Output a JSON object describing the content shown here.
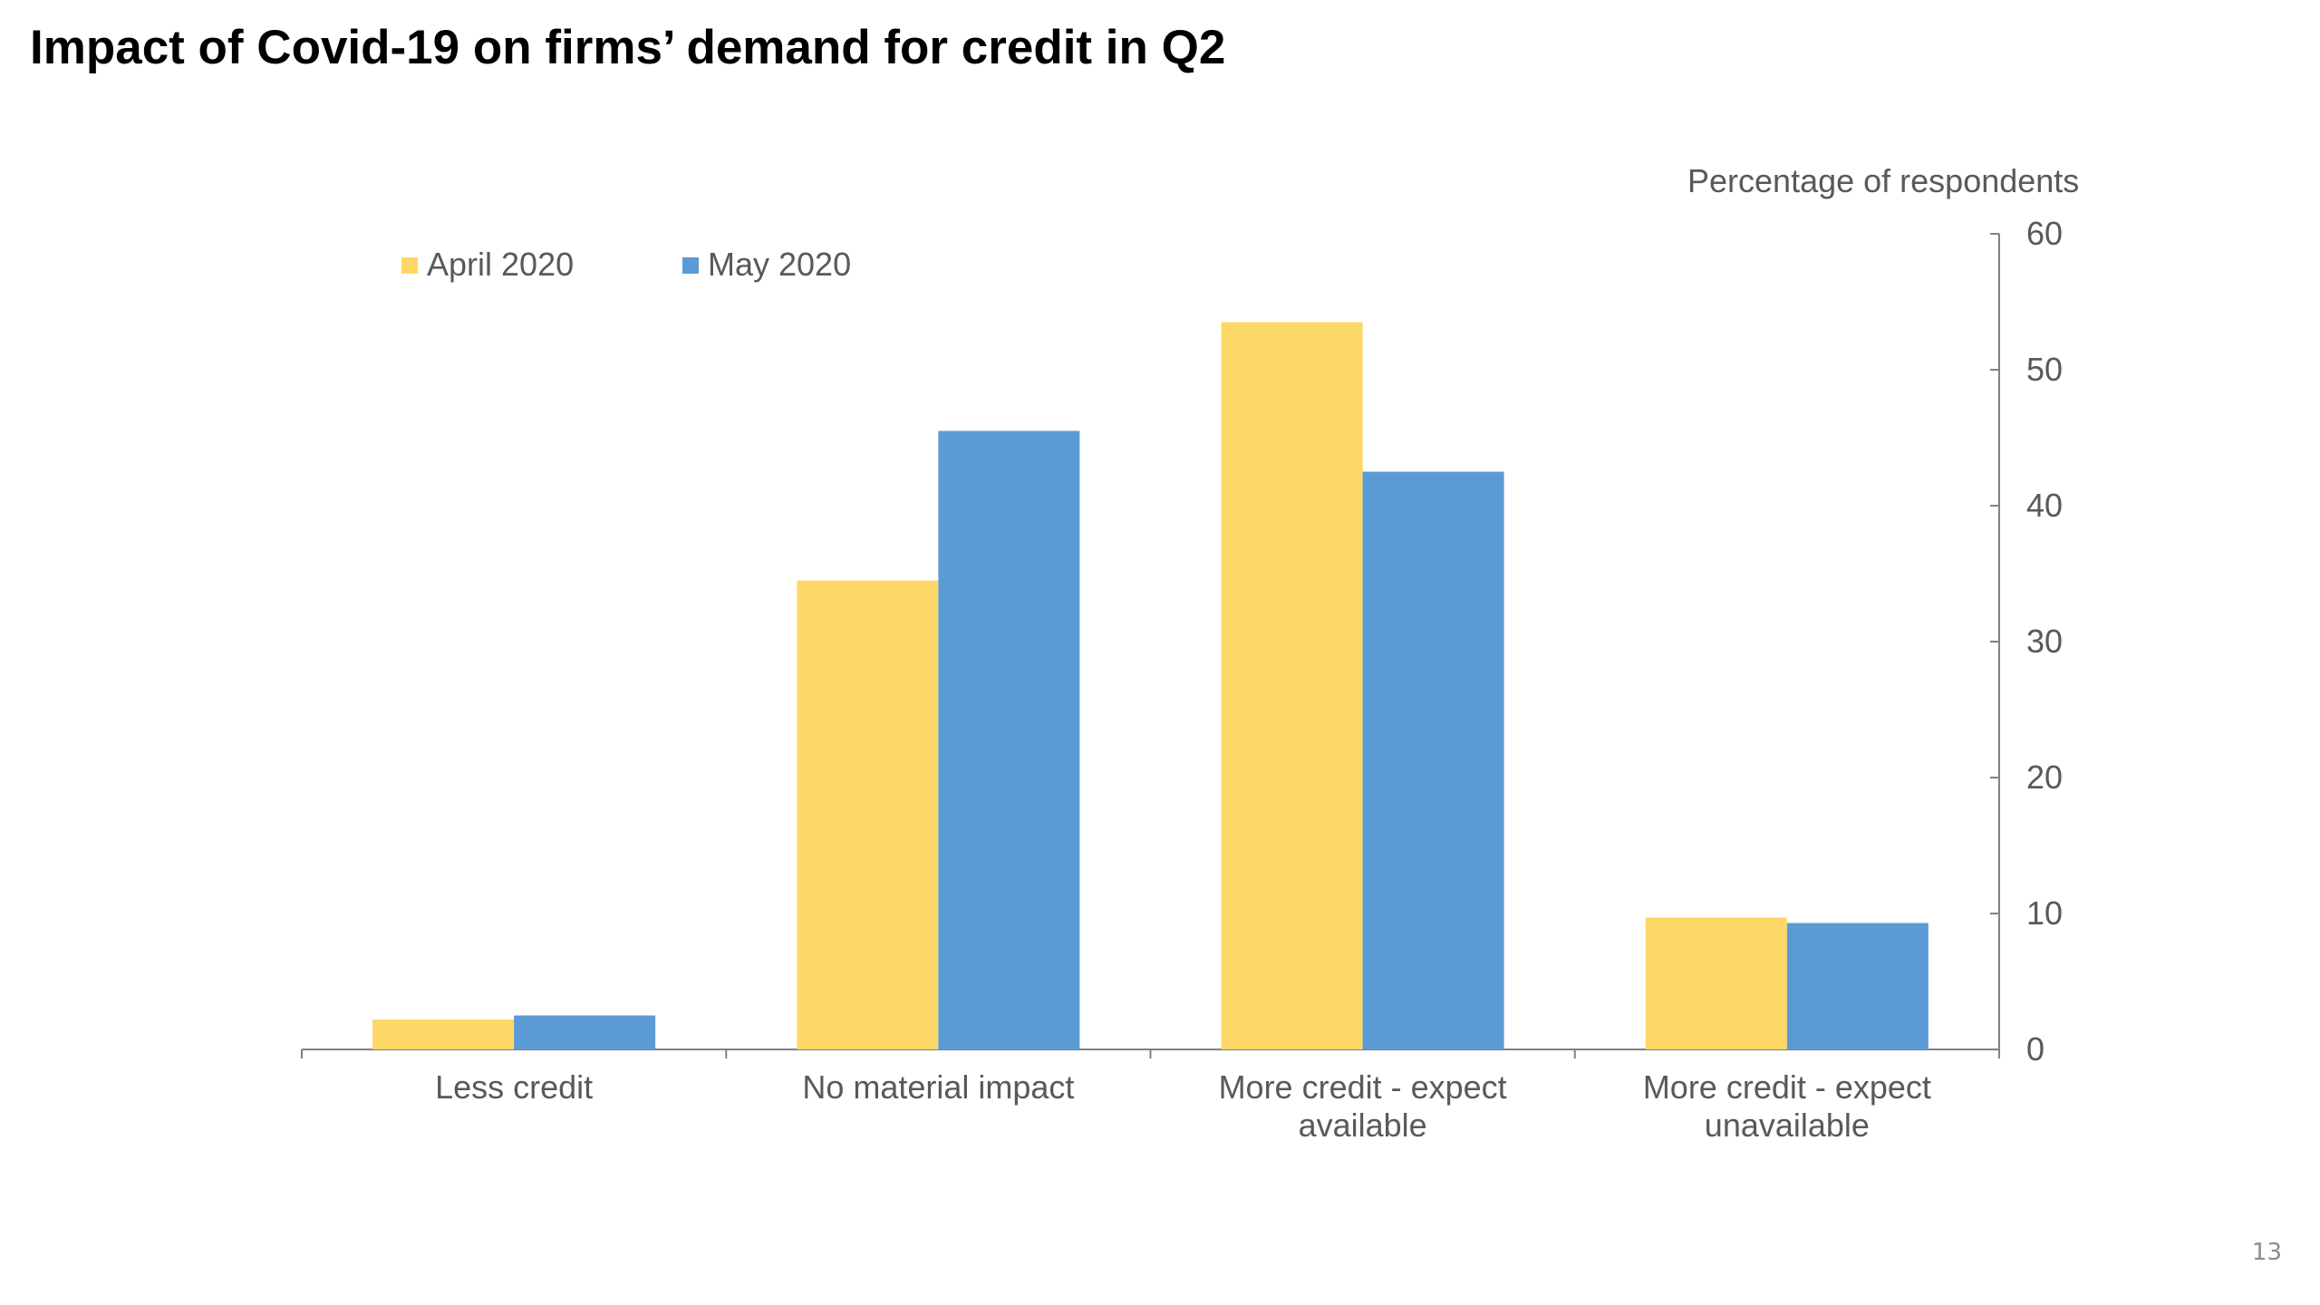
{
  "slide": {
    "title": "Impact of Covid-19 on firms’ demand for credit in Q2",
    "page_number": "13"
  },
  "chart_data": {
    "type": "bar",
    "title": "Impact of Covid-19 on firms’ demand for credit in Q2",
    "ylabel": "Percentage of respondents",
    "xlabel": "",
    "categories": [
      [
        "Less credit"
      ],
      [
        "No material impact"
      ],
      [
        "More credit - expect",
        "available"
      ],
      [
        "More credit - expect",
        "unavailable"
      ]
    ],
    "series": [
      {
        "name": "April 2020",
        "color": "#FDD866",
        "values": [
          2.2,
          34.5,
          53.5,
          9.7
        ]
      },
      {
        "name": "May 2020",
        "color": "#5B9BD5",
        "values": [
          2.5,
          45.5,
          42.5,
          9.3
        ]
      }
    ],
    "ylim": [
      0,
      60
    ],
    "yticks": [
      0,
      10,
      20,
      30,
      40,
      50,
      60
    ],
    "y_axis_side": "right",
    "grid": false,
    "legend_position": "top-left"
  }
}
